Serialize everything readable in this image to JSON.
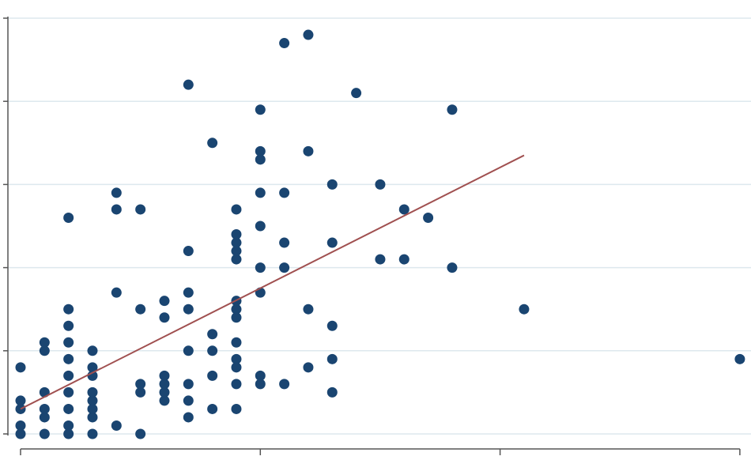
{
  "chart_data": {
    "type": "scatter",
    "title": "",
    "xlabel": "",
    "ylabel": "",
    "xlim": [
      0,
      30.5
    ],
    "ylim": [
      0,
      51
    ],
    "x_ticks": [
      0,
      10,
      20,
      30
    ],
    "y_ticks": [
      0,
      10,
      20,
      30,
      40,
      50
    ],
    "grid": true,
    "colors": {
      "points": "#1a4571",
      "fit_line": "#a05050",
      "grid": "#dde8ee",
      "axis": "#555555"
    },
    "series": [
      {
        "points": [
          [
            0,
            0
          ],
          [
            0,
            1
          ],
          [
            0,
            3
          ],
          [
            0,
            4
          ],
          [
            0,
            8
          ],
          [
            1,
            0
          ],
          [
            1,
            2
          ],
          [
            1,
            3
          ],
          [
            1,
            5
          ],
          [
            1,
            10
          ],
          [
            1,
            11
          ],
          [
            2,
            0
          ],
          [
            2,
            1
          ],
          [
            2,
            3
          ],
          [
            2,
            5
          ],
          [
            2,
            7
          ],
          [
            2,
            9
          ],
          [
            2,
            11
          ],
          [
            2,
            13
          ],
          [
            2,
            15
          ],
          [
            2,
            26
          ],
          [
            3,
            0
          ],
          [
            3,
            2
          ],
          [
            3,
            3
          ],
          [
            3,
            4
          ],
          [
            3,
            5
          ],
          [
            3,
            7
          ],
          [
            3,
            8
          ],
          [
            3,
            10
          ],
          [
            4,
            1
          ],
          [
            4,
            17
          ],
          [
            4,
            27
          ],
          [
            4,
            29
          ],
          [
            5,
            0
          ],
          [
            5,
            5
          ],
          [
            5,
            6
          ],
          [
            5,
            15
          ],
          [
            5,
            27
          ],
          [
            6,
            4
          ],
          [
            6,
            5
          ],
          [
            6,
            6
          ],
          [
            6,
            7
          ],
          [
            6,
            14
          ],
          [
            6,
            16
          ],
          [
            7,
            2
          ],
          [
            7,
            4
          ],
          [
            7,
            6
          ],
          [
            7,
            10
          ],
          [
            7,
            15
          ],
          [
            7,
            17
          ],
          [
            7,
            22
          ],
          [
            7,
            42
          ],
          [
            8,
            3
          ],
          [
            8,
            7
          ],
          [
            8,
            10
          ],
          [
            8,
            12
          ],
          [
            8,
            35
          ],
          [
            9,
            3
          ],
          [
            9,
            6
          ],
          [
            9,
            8
          ],
          [
            9,
            9
          ],
          [
            9,
            11
          ],
          [
            9,
            14
          ],
          [
            9,
            15
          ],
          [
            9,
            16
          ],
          [
            9,
            21
          ],
          [
            9,
            22
          ],
          [
            9,
            23
          ],
          [
            9,
            24
          ],
          [
            9,
            27
          ],
          [
            10,
            6
          ],
          [
            10,
            7
          ],
          [
            10,
            17
          ],
          [
            10,
            20
          ],
          [
            10,
            25
          ],
          [
            10,
            29
          ],
          [
            10,
            33
          ],
          [
            10,
            34
          ],
          [
            10,
            39
          ],
          [
            11,
            6
          ],
          [
            11,
            20
          ],
          [
            11,
            23
          ],
          [
            11,
            29
          ],
          [
            11,
            47
          ],
          [
            12,
            8
          ],
          [
            12,
            15
          ],
          [
            12,
            34
          ],
          [
            12,
            48
          ],
          [
            13,
            5
          ],
          [
            13,
            9
          ],
          [
            13,
            13
          ],
          [
            13,
            23
          ],
          [
            13,
            30
          ],
          [
            14,
            41
          ],
          [
            15,
            21
          ],
          [
            15,
            30
          ],
          [
            16,
            21
          ],
          [
            16,
            27
          ],
          [
            17,
            26
          ],
          [
            18,
            20
          ],
          [
            18,
            39
          ],
          [
            21,
            15
          ],
          [
            30,
            9
          ]
        ]
      }
    ],
    "fit_line": {
      "x": [
        0,
        21
      ],
      "y": [
        3,
        33.5
      ]
    }
  }
}
